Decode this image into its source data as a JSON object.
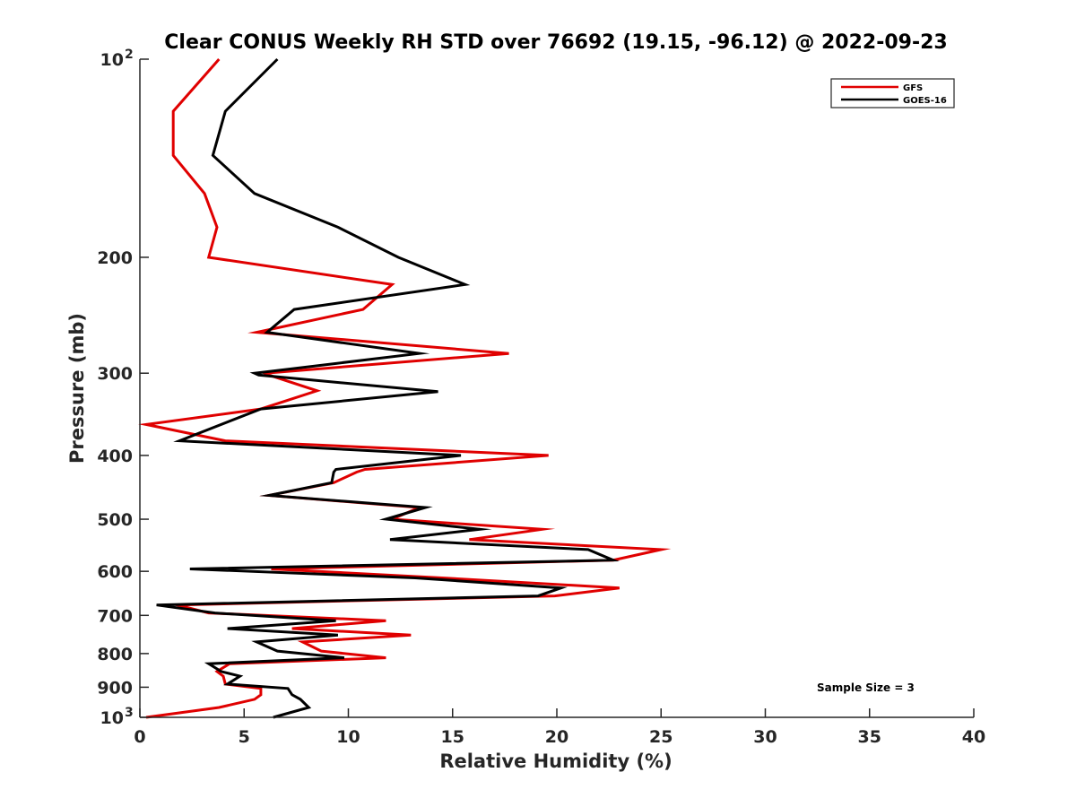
{
  "chart_data": {
    "type": "line",
    "title": "Clear CONUS Weekly RH STD over 76692 (19.15, -96.12) @ 2022-09-23",
    "xlabel": "Relative Humidity (%)",
    "ylabel": "Pressure (mb)",
    "xlim": [
      0,
      40
    ],
    "ylim": [
      100,
      1000
    ],
    "yscale": "log",
    "y_reversed": true,
    "grid": false,
    "xticks": [
      0,
      5,
      10,
      15,
      20,
      25,
      30,
      35,
      40
    ],
    "xtick_labels": [
      "0",
      "5",
      "10",
      "15",
      "20",
      "25",
      "30",
      "35",
      "40"
    ],
    "yticks": [
      100,
      200,
      300,
      400,
      500,
      600,
      700,
      800,
      900,
      1000
    ],
    "ytick_labels": [
      "10",
      "200",
      "300",
      "400",
      "500",
      "600",
      "700",
      "800",
      "900",
      "10"
    ],
    "ytick_exponents": [
      "2",
      "",
      "",
      "",
      "",
      "",
      "",
      "",
      "",
      "3"
    ],
    "legend": {
      "position": "top-right",
      "entries": [
        "GFS",
        "GOES-16"
      ]
    },
    "annotation": "Sample Size = 3",
    "series": [
      {
        "name": "GFS",
        "color": "#e00000",
        "points": [
          [
            3.8,
            100
          ],
          [
            1.6,
            120
          ],
          [
            1.6,
            140
          ],
          [
            3.1,
            160
          ],
          [
            3.7,
            180
          ],
          [
            3.3,
            200
          ],
          [
            12.1,
            220
          ],
          [
            10.7,
            240
          ],
          [
            5.6,
            260
          ],
          [
            17.7,
            280
          ],
          [
            6.0,
            300
          ],
          [
            6.2,
            302
          ],
          [
            8.5,
            319
          ],
          [
            5.8,
            340
          ],
          [
            0.3,
            359
          ],
          [
            4.1,
            380
          ],
          [
            19.6,
            400
          ],
          [
            10.8,
            420
          ],
          [
            10.4,
            424
          ],
          [
            9.3,
            440
          ],
          [
            6.2,
            460
          ],
          [
            13.4,
            480
          ],
          [
            12.1,
            500
          ],
          [
            19.3,
            518
          ],
          [
            15.8,
            537
          ],
          [
            25.0,
            556
          ],
          [
            22.7,
            577
          ],
          [
            6.3,
            595
          ],
          [
            14.5,
            614
          ],
          [
            23.0,
            636
          ],
          [
            19.9,
            654
          ],
          [
            1.8,
            675
          ],
          [
            3.3,
            694
          ],
          [
            11.8,
            713
          ],
          [
            7.3,
            733
          ],
          [
            13.0,
            750
          ],
          [
            7.8,
            768
          ],
          [
            8.7,
            793
          ],
          [
            11.8,
            812
          ],
          [
            4.3,
            829
          ],
          [
            3.7,
            852
          ],
          [
            4.0,
            866
          ],
          [
            4.1,
            890
          ],
          [
            5.8,
            904
          ],
          [
            5.8,
            924
          ],
          [
            5.5,
            939
          ],
          [
            3.8,
            966
          ],
          [
            0.3,
            1000
          ]
        ]
      },
      {
        "name": "GOES-16",
        "color": "#000000",
        "points": [
          [
            6.6,
            100
          ],
          [
            4.1,
            120
          ],
          [
            3.5,
            140
          ],
          [
            5.5,
            160
          ],
          [
            9.5,
            180
          ],
          [
            12.4,
            200
          ],
          [
            15.6,
            220
          ],
          [
            7.4,
            240
          ],
          [
            6.1,
            260
          ],
          [
            13.4,
            280
          ],
          [
            5.5,
            300
          ],
          [
            5.7,
            302
          ],
          [
            14.3,
            320
          ],
          [
            5.8,
            340
          ],
          [
            1.9,
            380
          ],
          [
            15.4,
            400
          ],
          [
            9.4,
            420
          ],
          [
            9.3,
            424
          ],
          [
            9.2,
            440
          ],
          [
            6.2,
            460
          ],
          [
            13.7,
            480
          ],
          [
            11.8,
            500
          ],
          [
            16.3,
            518
          ],
          [
            12.0,
            537
          ],
          [
            21.5,
            556
          ],
          [
            22.7,
            577
          ],
          [
            2.4,
            595
          ],
          [
            13.2,
            614
          ],
          [
            20.2,
            636
          ],
          [
            19.1,
            654
          ],
          [
            0.8,
            675
          ],
          [
            3.6,
            694
          ],
          [
            9.4,
            713
          ],
          [
            4.2,
            733
          ],
          [
            9.5,
            750
          ],
          [
            5.6,
            768
          ],
          [
            6.6,
            793
          ],
          [
            9.8,
            812
          ],
          [
            3.3,
            829
          ],
          [
            3.9,
            852
          ],
          [
            4.8,
            866
          ],
          [
            4.2,
            890
          ],
          [
            7.1,
            904
          ],
          [
            7.3,
            924
          ],
          [
            7.7,
            939
          ],
          [
            8.1,
            966
          ],
          [
            6.4,
            1000
          ]
        ]
      }
    ]
  }
}
